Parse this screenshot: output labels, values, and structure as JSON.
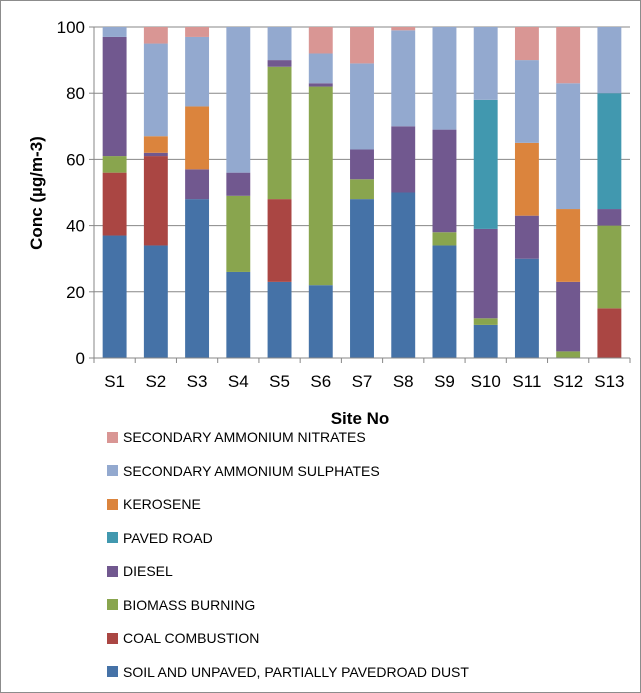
{
  "chart_data": {
    "type": "bar",
    "stacked": true,
    "title": "",
    "xlabel": "Site No",
    "ylabel": "Conc (µg/m-3)",
    "ylim": [
      0,
      100
    ],
    "yticks": [
      0,
      20,
      40,
      60,
      80,
      100
    ],
    "grid": true,
    "legend_position": "bottom",
    "categories": [
      "S1",
      "S2",
      "S3",
      "S4",
      "S5",
      "S6",
      "S7",
      "S8",
      "S9",
      "S10",
      "S11",
      "S12",
      "S13"
    ],
    "series": [
      {
        "name": "SOIL AND UNPAVED, PARTIALLY PAVEDROAD DUST",
        "color": "#4572a7",
        "values": [
          37,
          34,
          48,
          26,
          23,
          22,
          48,
          50,
          34,
          10,
          30,
          0,
          0
        ]
      },
      {
        "name": "COAL COMBUSTION",
        "color": "#aa4643",
        "values": [
          19,
          27,
          0,
          0,
          25,
          0,
          0,
          0,
          0,
          0,
          0,
          0,
          15
        ]
      },
      {
        "name": "BIOMASS BURNING",
        "color": "#89a54e",
        "values": [
          5,
          0,
          0,
          23,
          40,
          60,
          6,
          0,
          4,
          2,
          0,
          2,
          25
        ]
      },
      {
        "name": "DIESEL",
        "color": "#71588f",
        "values": [
          36,
          1,
          9,
          7,
          2,
          1,
          9,
          20,
          31,
          27,
          13,
          21,
          5
        ]
      },
      {
        "name": "PAVED ROAD",
        "color": "#4198af",
        "values": [
          0,
          0,
          0,
          0,
          0,
          0,
          0,
          0,
          0,
          39,
          0,
          0,
          35
        ]
      },
      {
        "name": "KEROSENE",
        "color": "#db843d",
        "values": [
          0,
          5,
          19,
          0,
          0,
          0,
          0,
          0,
          0,
          0,
          22,
          22,
          0
        ]
      },
      {
        "name": "SECONDARY AMMONIUM SULPHATES",
        "color": "#93a9cf",
        "values": [
          3,
          28,
          21,
          44,
          10,
          9,
          26,
          29,
          31,
          22,
          25,
          38,
          20
        ]
      },
      {
        "name": "SECONDARY AMMONIUM NITRATES",
        "color": "#d99694",
        "values": [
          0,
          5,
          3,
          0,
          0,
          8,
          11,
          1,
          0,
          0,
          10,
          17,
          0
        ]
      }
    ]
  }
}
